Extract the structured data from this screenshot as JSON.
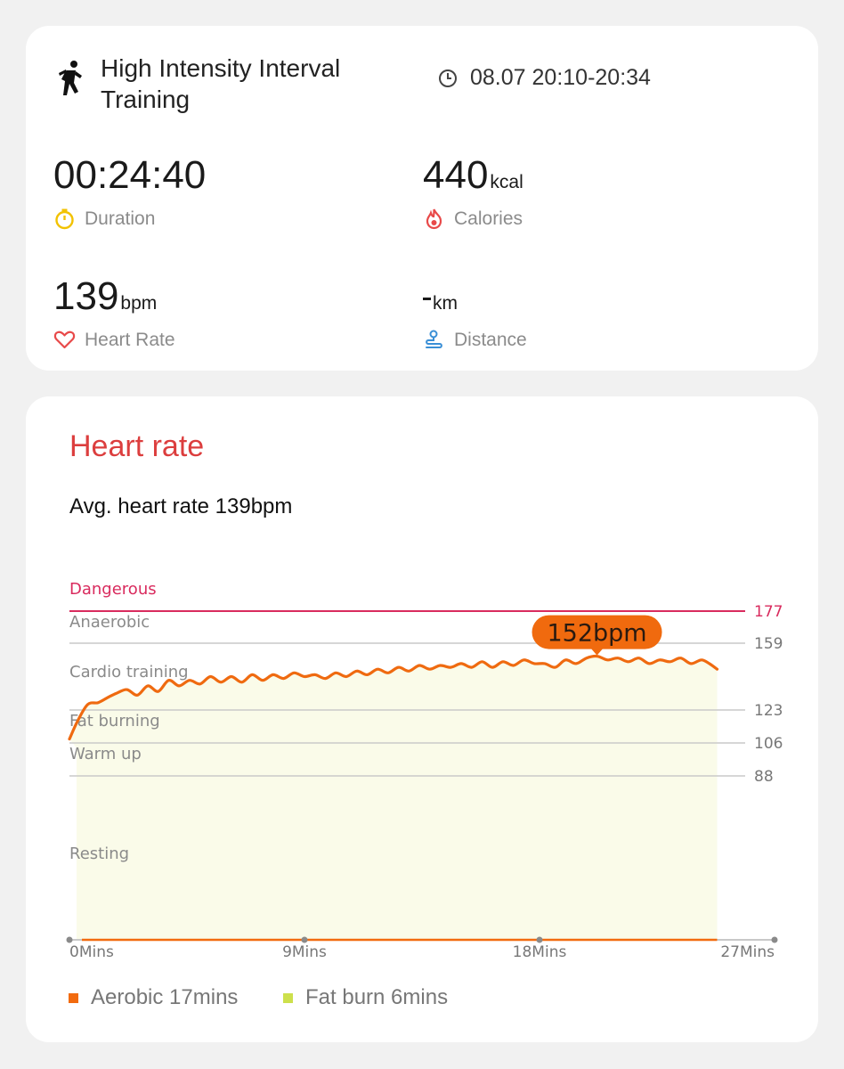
{
  "summary": {
    "workout_title": "High Intensity Interval Training",
    "time_range": "08.07 20:10-20:34",
    "duration": {
      "value": "00:24:40",
      "label": "Duration",
      "icon": "stopwatch-icon"
    },
    "calories": {
      "value": "440",
      "unit": "kcal",
      "label": "Calories",
      "icon": "flame-icon"
    },
    "heart_rate": {
      "value": "139",
      "unit": "bpm",
      "label": "Heart Rate",
      "icon": "heart-icon"
    },
    "distance": {
      "value": "",
      "unit": "km",
      "label": "Distance",
      "icon": "route-icon"
    }
  },
  "heart_rate_card": {
    "title": "Heart rate",
    "average": "Avg. heart rate 139bpm",
    "max_callout": "152bpm",
    "legend": [
      {
        "label": "Aerobic 17mins",
        "color": "#f26b0f"
      },
      {
        "label": "Fat burn 6mins",
        "color": "#cde04c"
      }
    ]
  },
  "colors": {
    "accent_red": "#dc3e3e",
    "line_orange": "#ef6a10",
    "dangerous": "#d92b5e",
    "fill": "#fafbe9"
  },
  "chart_data": {
    "type": "line",
    "xlabel": "",
    "ylabel": "",
    "x_ticks": [
      "0Mins",
      "9Mins",
      "18Mins",
      "27Mins"
    ],
    "xlim": [
      0,
      27
    ],
    "zones": [
      {
        "name": "Dangerous",
        "threshold": 177
      },
      {
        "name": "Anaerobic",
        "threshold": 159
      },
      {
        "name": "Cardio training",
        "threshold": 123
      },
      {
        "name": "Fat burning",
        "threshold": 106
      },
      {
        "name": "Warm up",
        "threshold": 88
      },
      {
        "name": "Resting",
        "threshold": 0
      }
    ],
    "series": [
      {
        "values": [
          [
            0.0,
            108
          ],
          [
            0.3,
            117
          ],
          [
            0.7,
            126
          ],
          [
            1.1,
            127
          ],
          [
            1.5,
            130
          ],
          [
            1.8,
            132
          ],
          [
            2.2,
            134
          ],
          [
            2.6,
            131
          ],
          [
            3.0,
            136
          ],
          [
            3.4,
            133
          ],
          [
            3.8,
            139
          ],
          [
            4.2,
            136
          ],
          [
            4.6,
            139
          ],
          [
            5.0,
            137
          ],
          [
            5.4,
            141
          ],
          [
            5.8,
            138
          ],
          [
            6.2,
            141
          ],
          [
            6.6,
            138
          ],
          [
            7.0,
            142
          ],
          [
            7.4,
            139
          ],
          [
            7.8,
            142
          ],
          [
            8.2,
            140
          ],
          [
            8.6,
            143
          ],
          [
            9.0,
            141
          ],
          [
            9.4,
            142
          ],
          [
            9.8,
            140
          ],
          [
            10.2,
            143
          ],
          [
            10.6,
            141
          ],
          [
            11.0,
            144
          ],
          [
            11.4,
            142
          ],
          [
            11.8,
            145
          ],
          [
            12.2,
            143
          ],
          [
            12.6,
            146
          ],
          [
            13.0,
            144
          ],
          [
            13.4,
            147
          ],
          [
            13.8,
            145
          ],
          [
            14.2,
            147
          ],
          [
            14.6,
            146
          ],
          [
            15.0,
            148
          ],
          [
            15.4,
            146
          ],
          [
            15.8,
            149
          ],
          [
            16.2,
            146
          ],
          [
            16.6,
            149
          ],
          [
            17.0,
            147
          ],
          [
            17.4,
            150
          ],
          [
            17.8,
            148
          ],
          [
            18.2,
            148
          ],
          [
            18.6,
            146
          ],
          [
            19.0,
            150
          ],
          [
            19.4,
            148
          ],
          [
            19.8,
            151
          ],
          [
            20.2,
            152
          ],
          [
            20.6,
            150
          ],
          [
            21.0,
            151
          ],
          [
            21.4,
            149
          ],
          [
            21.8,
            151
          ],
          [
            22.2,
            148
          ],
          [
            22.6,
            150
          ],
          [
            23.0,
            149
          ],
          [
            23.4,
            151
          ],
          [
            23.8,
            148
          ],
          [
            24.2,
            150
          ],
          [
            24.5,
            148
          ],
          [
            24.8,
            145
          ]
        ]
      }
    ]
  }
}
